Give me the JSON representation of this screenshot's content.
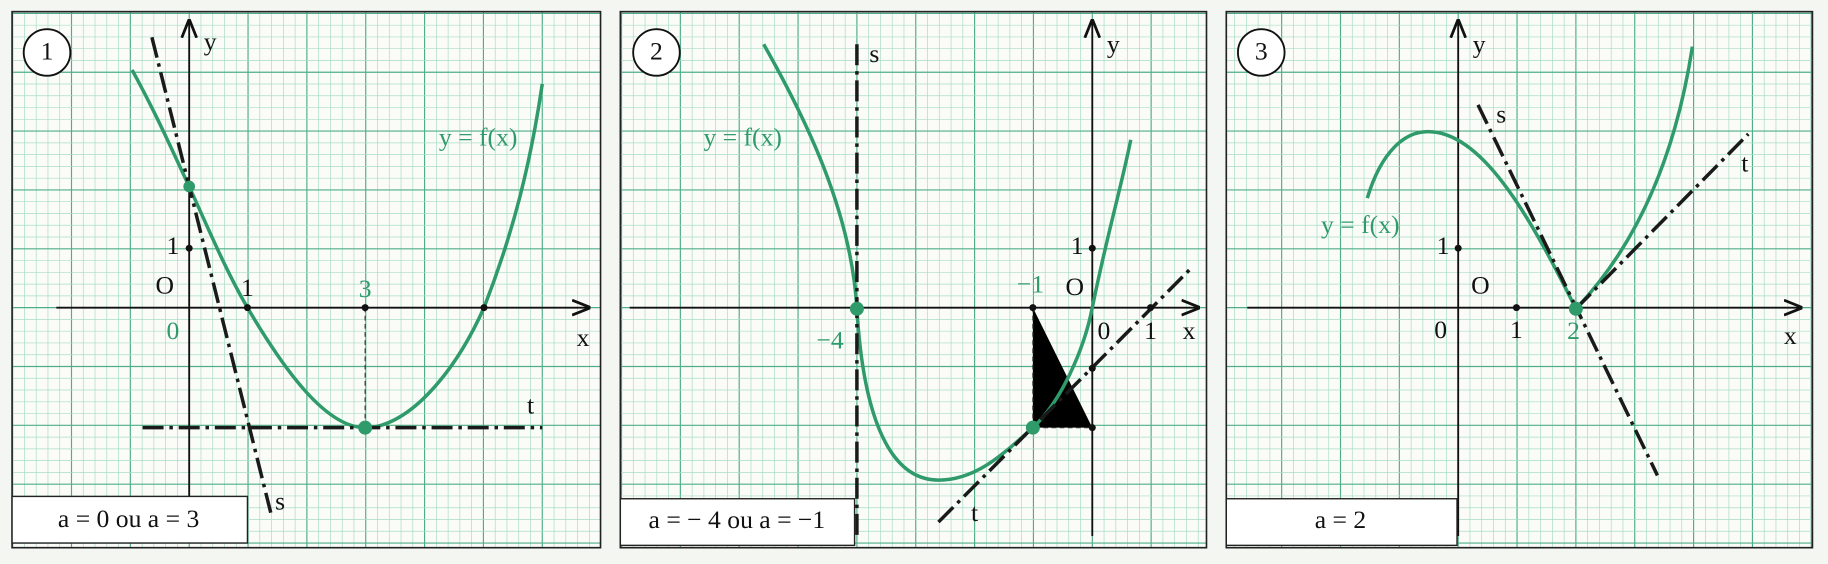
{
  "panels": [
    {
      "number": "1",
      "axis_y": "y",
      "axis_x": "x",
      "origin": "O",
      "tick_labels": [
        "0",
        "1",
        "3",
        "1"
      ],
      "curve_label": "y = f(x)",
      "tangent_labels": [
        "s",
        "t"
      ],
      "caption": "a = 0 ou a = 3"
    },
    {
      "number": "2",
      "axis_y": "y",
      "axis_x": "x",
      "origin": "O",
      "tick_labels": [
        "−4",
        "−1",
        "0",
        "1",
        "1"
      ],
      "curve_label": "y = f(x)",
      "tangent_labels": [
        "s",
        "t"
      ],
      "caption": "a = − 4 ou a = −1"
    },
    {
      "number": "3",
      "axis_y": "y",
      "axis_x": "x",
      "origin": "O",
      "tick_labels": [
        "0",
        "1",
        "2",
        "1"
      ],
      "curve_label": "y = f(x)",
      "tangent_labels": [
        "s",
        "t"
      ],
      "caption": "a = 2"
    }
  ]
}
